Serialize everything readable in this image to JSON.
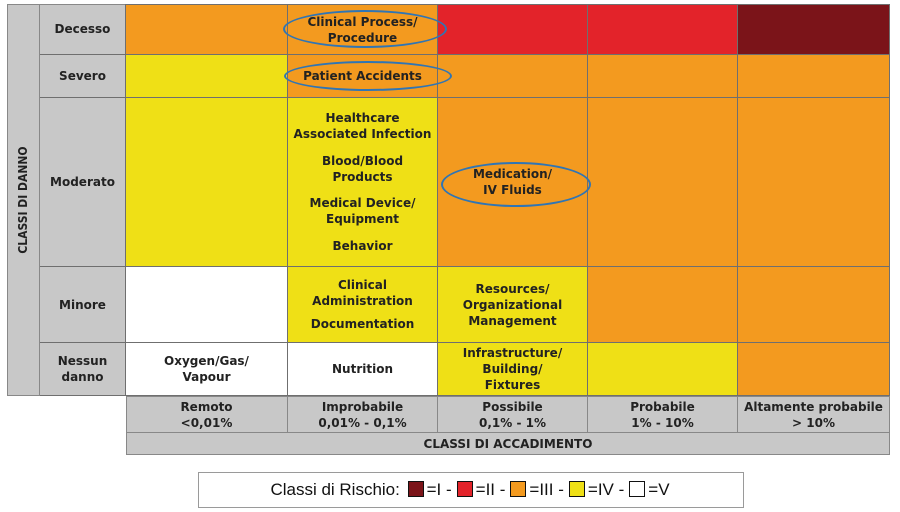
{
  "axis_labels": {
    "y": "CLASSI DI DANNO",
    "x": "CLASSI DI ACCADIMENTO"
  },
  "rows": [
    {
      "label": "Decesso"
    },
    {
      "label": "Severo"
    },
    {
      "label": "Moderato"
    },
    {
      "label": "Minore"
    },
    {
      "label": "Nessun\ndanno"
    }
  ],
  "columns": [
    {
      "name": "Remoto",
      "range": "<0,01%"
    },
    {
      "name": "Improbabile",
      "range": "0,01% - 0,1%"
    },
    {
      "name": "Possibile",
      "range": "0,1% - 1%"
    },
    {
      "name": "Probabile",
      "range": "1% - 10%"
    },
    {
      "name": "Altamente probabile",
      "range": "> 10%"
    }
  ],
  "risk_colors": {
    "I": "#7b1419",
    "II": "#e3232a",
    "III": "#f39a1f",
    "IV": "#efe016",
    "V": "#ffffff"
  },
  "matrix_classes": [
    [
      "III",
      "III",
      "II",
      "II",
      "I"
    ],
    [
      "IV",
      "III",
      "III",
      "III",
      "III"
    ],
    [
      "IV",
      "IV",
      "III",
      "III",
      "III"
    ],
    [
      "V",
      "IV",
      "IV",
      "III",
      "III"
    ],
    [
      "V",
      "V",
      "IV",
      "IV",
      "III"
    ]
  ],
  "cells": {
    "r0c1": [
      "Clinical Process/\nProcedure"
    ],
    "r1c1": [
      "Patient Accidents"
    ],
    "r2c1": [
      "Healthcare\nAssociated Infection",
      "Blood/Blood\nProducts",
      "Medical Device/\nEquipment",
      "Behavior"
    ],
    "r2c2": [
      "Medication/\nIV Fluids"
    ],
    "r3c1": [
      "Clinical\nAdministration",
      "Documentation"
    ],
    "r3c2": [
      "Resources/\nOrganizational\nManagement"
    ],
    "r4c0": [
      "Oxygen/Gas/\nVapour"
    ],
    "r4c1": [
      "Nutrition"
    ],
    "r4c2": [
      "Infrastructure/\nBuilding/\nFixtures"
    ]
  },
  "highlighted": [
    "Clinical Process/Procedure",
    "Patient Accidents",
    "Medication/IV Fluids"
  ],
  "legend": {
    "title": "Classi di Rischio",
    "entries": [
      {
        "class": "I",
        "text": "=I -"
      },
      {
        "class": "II",
        "text": "=II -"
      },
      {
        "class": "III",
        "text": "=III -"
      },
      {
        "class": "IV",
        "text": "=IV -"
      },
      {
        "class": "V",
        "text": "=V"
      }
    ]
  }
}
